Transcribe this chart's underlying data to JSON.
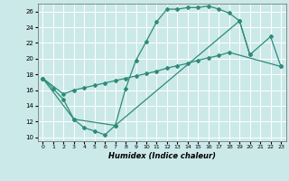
{
  "title": "",
  "xlabel": "Humidex (Indice chaleur)",
  "bg_color": "#cce9e9",
  "grid_color": "#ffffff",
  "line_color": "#2e8b7a",
  "xlim": [
    -0.5,
    23.5
  ],
  "ylim": [
    9.5,
    27
  ],
  "xticks": [
    0,
    1,
    2,
    3,
    4,
    5,
    6,
    7,
    8,
    9,
    10,
    11,
    12,
    13,
    14,
    15,
    16,
    17,
    18,
    19,
    20,
    21,
    22,
    23
  ],
  "yticks": [
    10,
    12,
    14,
    16,
    18,
    20,
    22,
    24,
    26
  ],
  "line1_x": [
    0,
    1,
    2,
    3,
    4,
    5,
    6,
    7,
    8,
    9,
    10,
    11,
    12,
    13,
    14,
    15,
    16,
    17,
    18,
    19,
    20
  ],
  "line1_y": [
    17.5,
    16.2,
    14.8,
    12.3,
    11.2,
    10.8,
    10.3,
    11.5,
    16.2,
    19.8,
    22.2,
    24.7,
    26.3,
    26.3,
    26.5,
    26.5,
    26.7,
    26.3,
    25.8,
    24.8,
    20.5
  ],
  "line2_x": [
    0,
    2,
    3,
    4,
    5,
    6,
    7,
    8,
    9,
    10,
    11,
    12,
    13,
    14,
    15,
    16,
    17,
    18,
    23
  ],
  "line2_y": [
    17.5,
    15.5,
    16.0,
    16.3,
    16.6,
    16.9,
    17.2,
    17.5,
    17.8,
    18.1,
    18.4,
    18.8,
    19.1,
    19.4,
    19.8,
    20.1,
    20.4,
    20.8,
    19.0
  ],
  "line3_x": [
    0,
    3,
    7,
    19,
    20,
    22,
    23
  ],
  "line3_y": [
    17.5,
    12.3,
    11.5,
    24.8,
    20.5,
    22.8,
    19.0
  ]
}
